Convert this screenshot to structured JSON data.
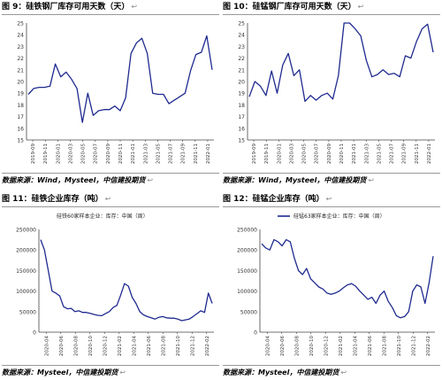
{
  "panels": [
    {
      "title": "图 9：硅铁钢厂库存可用天数（天）",
      "source": "数据来源：Wind，Mysteel，中信建投期货",
      "arrow": "↩",
      "chart_data": {
        "type": "line",
        "ylim": [
          15,
          25
        ],
        "yticks": [
          15,
          16,
          17,
          18,
          19,
          20,
          21,
          22,
          23,
          24,
          25
        ],
        "xticklabels": [
          "2019-09",
          "2019-11",
          "2020-01",
          "2020-03",
          "2020-05",
          "2020-07",
          "2020-09",
          "2020-11",
          "2021-01",
          "2021-03",
          "2021-05",
          "2021-07",
          "2021-09",
          "2021-11",
          "2022-01"
        ],
        "legend": "",
        "series": [
          {
            "color": "#1f2a8f",
            "values": [
              18.9,
              19.4,
              19.5,
              19.5,
              19.6,
              21.5,
              20.4,
              20.8,
              20.2,
              19.4,
              16.5,
              19.0,
              17.1,
              17.5,
              17.6,
              17.6,
              17.9,
              17.5,
              18.6,
              22.4,
              23.3,
              23.7,
              22.4,
              19.0,
              18.9,
              18.9,
              18.1,
              18.4,
              18.7,
              19.0,
              20.9,
              22.3,
              22.5,
              23.9,
              21.0
            ]
          }
        ]
      }
    },
    {
      "title": "图 10：硅锰钢厂库存可用天数（天）",
      "source": "数据来源：Wind，Mysteel，中信建投期货",
      "arrow": "↩",
      "chart_data": {
        "type": "line",
        "ylim": [
          15,
          25
        ],
        "yticks": [
          15,
          16,
          17,
          18,
          19,
          20,
          21,
          22,
          23,
          24,
          25
        ],
        "xticklabels": [
          "2019-09",
          "2019-11",
          "2020-01",
          "2020-03",
          "2020-05",
          "2020-07",
          "2020-09",
          "2020-11",
          "2021-01",
          "2021-03",
          "2021-05",
          "2021-07",
          "2021-09",
          "2021-11",
          "2022-01"
        ],
        "legend": "",
        "series": [
          {
            "color": "#1f2a8f",
            "values": [
              18.7,
              20.0,
              19.6,
              18.8,
              20.9,
              19.0,
              21.4,
              22.4,
              20.5,
              21.0,
              18.3,
              18.8,
              18.4,
              18.8,
              19.0,
              18.5,
              20.5,
              25.0,
              25.0,
              24.5,
              23.9,
              21.8,
              20.4,
              20.6,
              21.0,
              20.6,
              20.7,
              20.4,
              22.2,
              22.0,
              23.4,
              24.5,
              24.9,
              22.5
            ]
          }
        ]
      }
    },
    {
      "title": "图 11：硅铁企业库存（吨）",
      "source": "数据来源：Mysteel，中信建投期货",
      "arrow": "↩",
      "chart_data": {
        "type": "line",
        "ylim": [
          0,
          250000
        ],
        "yticks": [
          0,
          50000,
          100000,
          150000,
          200000,
          250000
        ],
        "xticklabels": [
          "2020-04",
          "2020-06",
          "2020-08",
          "2020-10",
          "2020-12",
          "2021-02",
          "2021-04",
          "2021-06",
          "2021-08",
          "2021-10",
          "2021-12",
          "2022-02"
        ],
        "legend": "硅铁60家样本企业：库存：中国（周）",
        "series": [
          {
            "color": "#1f2a8f",
            "values": [
              225000,
              200000,
              150000,
              100000,
              95000,
              88000,
              62000,
              57000,
              58000,
              50000,
              52000,
              48000,
              48000,
              46000,
              43000,
              41000,
              40000,
              45000,
              50000,
              60000,
              65000,
              90000,
              118000,
              112000,
              85000,
              70000,
              50000,
              42000,
              38000,
              35000,
              32000,
              36000,
              38000,
              35000,
              34000,
              34000,
              32000,
              28000,
              30000,
              32000,
              38000,
              45000,
              52000,
              48000,
              95000,
              70000
            ]
          }
        ]
      }
    },
    {
      "title": "图 12：硅锰企业库存（吨）",
      "source": "数据来源：Mysteel，中信建投期货",
      "arrow": "↩",
      "chart_data": {
        "type": "line",
        "ylim": [
          0,
          250000
        ],
        "yticks": [
          0,
          50000,
          100000,
          150000,
          200000,
          250000
        ],
        "xticklabels": [
          "2020-04",
          "2020-06",
          "2020-08",
          "2020-10",
          "2020-12",
          "2021-02",
          "2021-04",
          "2021-06",
          "2021-08",
          "2021-10",
          "2021-12",
          "2022-02"
        ],
        "legend": "硅锰63家样本企业：库存：中国（周）",
        "series": [
          {
            "color": "#1f2a8f",
            "values": [
              215000,
              205000,
              200000,
              225000,
              220000,
              210000,
              225000,
              220000,
              180000,
              150000,
              140000,
              155000,
              130000,
              120000,
              110000,
              105000,
              95000,
              92000,
              95000,
              100000,
              108000,
              115000,
              118000,
              112000,
              100000,
              90000,
              80000,
              85000,
              70000,
              90000,
              100000,
              75000,
              60000,
              40000,
              35000,
              38000,
              50000,
              100000,
              115000,
              110000,
              70000,
              120000,
              185000
            ]
          }
        ]
      }
    }
  ]
}
